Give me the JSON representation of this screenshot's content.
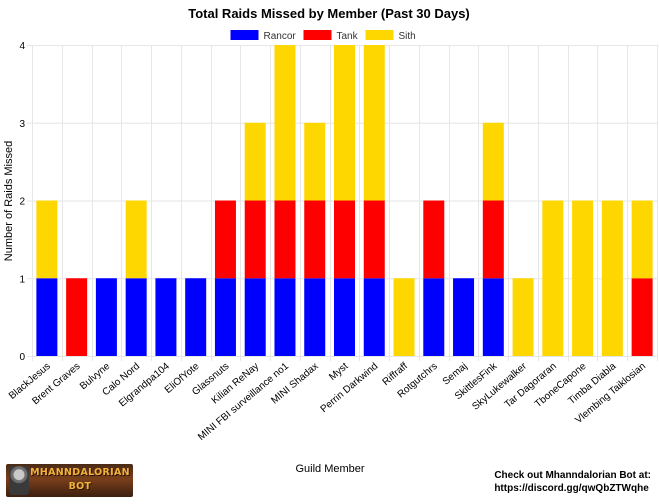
{
  "chart_data": {
    "type": "bar",
    "stacked": true,
    "title": "Total Raids Missed by Member (Past 30 Days)",
    "xlabel": "Guild Member",
    "ylabel": "Number of Raids Missed",
    "ylim": [
      0,
      4
    ],
    "yticks": [
      "0",
      "1",
      "2",
      "3",
      "4"
    ],
    "grid": true,
    "legend_position": "top",
    "categories": [
      "BlackJesus",
      "Brent Graves",
      "Bulvyne",
      "Calo Nord",
      "Elgrandpa104",
      "EliOfYote",
      "Glassnuts",
      "Kilian ReNay",
      "MINI FBI surveillance no1",
      "MINI Shadax",
      "Myst",
      "Perrin Darkwind",
      "Riffraff",
      "Rotgutchrs",
      "Semaj",
      "SkittlesFink",
      "SkyLukewalker",
      "Tar Dagoraran",
      "TboneCapone",
      "Timba Diabla",
      "Vlembing Taiklosian"
    ],
    "series": [
      {
        "name": "Rancor",
        "color": "#0000ff",
        "values": [
          1,
          0,
          1,
          1,
          1,
          1,
          1,
          1,
          1,
          1,
          1,
          1,
          0,
          1,
          1,
          1,
          0,
          0,
          0,
          0,
          0
        ]
      },
      {
        "name": "Tank",
        "color": "#ff0000",
        "values": [
          0,
          1,
          0,
          0,
          0,
          0,
          1,
          1,
          1,
          1,
          1,
          1,
          0,
          1,
          0,
          1,
          0,
          0,
          0,
          0,
          1
        ]
      },
      {
        "name": "Sith",
        "color": "#ffd700",
        "values": [
          1,
          0,
          0,
          1,
          0,
          0,
          0,
          1,
          2,
          1,
          2,
          2,
          1,
          0,
          0,
          1,
          1,
          2,
          2,
          2,
          1
        ]
      }
    ]
  },
  "footer": {
    "logo_line1": "MHANNDALORIAN",
    "logo_line2": "BOT",
    "promo_line1": "Check out Mhanndalorian Bot at:",
    "promo_line2": "https://discord.gg/qwQbZTWqhe"
  }
}
